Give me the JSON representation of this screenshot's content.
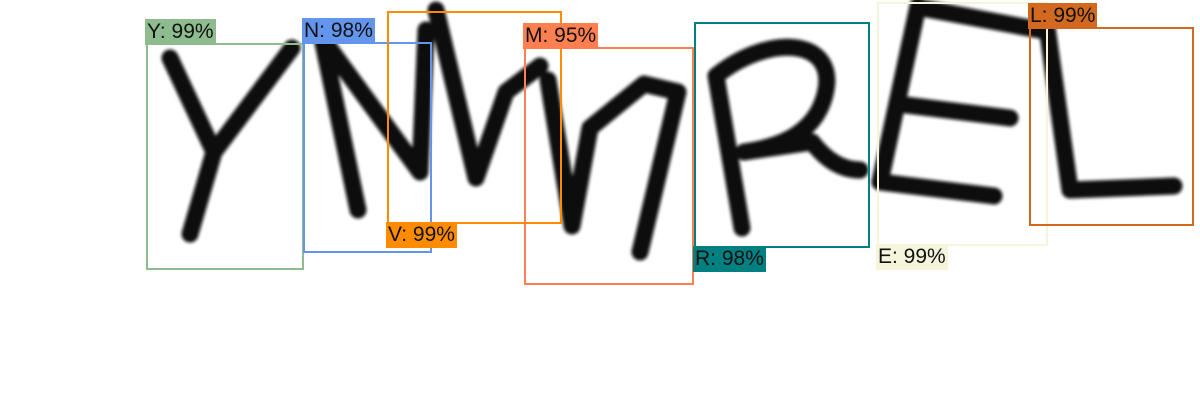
{
  "detections": [
    {
      "label": "Y: 99%",
      "color": "#8fbc8f"
    },
    {
      "label": "N: 98%",
      "color": "#6495ed"
    },
    {
      "label": "V: 99%",
      "color": "#ff8c00"
    },
    {
      "label": "M: 95%",
      "color": "#ff7f50"
    },
    {
      "label": "R: 98%",
      "color": "#008080"
    },
    {
      "label": "E: 99%",
      "color": "#f5f5dc"
    },
    {
      "label": "L: 99%",
      "color": "#d2691e"
    }
  ]
}
